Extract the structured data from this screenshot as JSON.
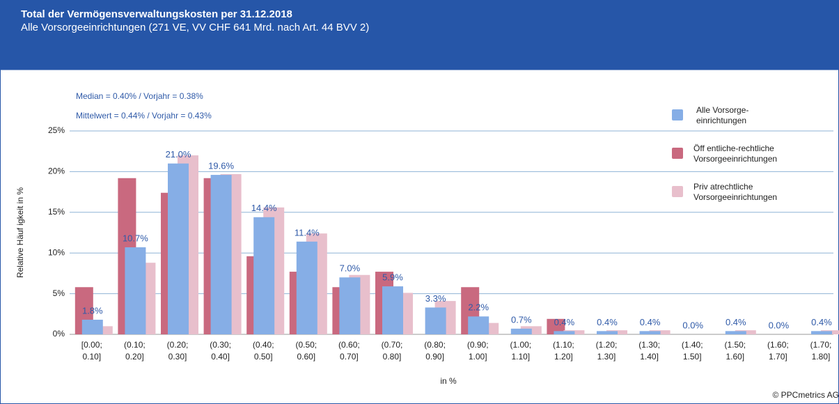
{
  "header": {
    "title": "Total der Vermögensverwaltungskosten  per 31.12.2018",
    "subtitle": "Alle Vorsorgeeinrichtungen (271 VE, VV  CHF 641 Mrd. nach Art. 44 BVV  2)"
  },
  "chart_data": {
    "type": "bar",
    "annotations": [
      "Median  = 0.40% /  Vorjahr = 0.38%",
      "Mittelwert  = 0.44% / Vorjahr = 0.43%"
    ],
    "y_label": "Relative Häuf igkeit in %",
    "x_label": "in %",
    "categories": [
      [
        "[0.00;",
        "0.10]"
      ],
      [
        "(0.10;",
        "0.20]"
      ],
      [
        "(0.20;",
        "0.30]"
      ],
      [
        "(0.30;",
        "0.40]"
      ],
      [
        "(0.40;",
        "0.50]"
      ],
      [
        "(0.50;",
        "0.60]"
      ],
      [
        "(0.60;",
        "0.70]"
      ],
      [
        "(0.70;",
        "0.80]"
      ],
      [
        "(0.80;",
        "0.90]"
      ],
      [
        "(0.90;",
        "1.00]"
      ],
      [
        "(1.00;",
        "1.10]"
      ],
      [
        "(1.10;",
        "1.20]"
      ],
      [
        "(1.20;",
        "1.30]"
      ],
      [
        "(1.30;",
        "1.40]"
      ],
      [
        "(1.40;",
        "1.50]"
      ],
      [
        "(1.50;",
        "1.60]"
      ],
      [
        "(1.60;",
        "1.70]"
      ],
      [
        "(1.70;",
        "1.80]"
      ]
    ],
    "series": [
      {
        "name": [
          "Alle Vorsorge-",
          "einrichtungen"
        ],
        "color": "#86aee6",
        "values": [
          1.8,
          10.7,
          21.0,
          19.6,
          14.4,
          11.4,
          7.0,
          5.9,
          3.3,
          2.2,
          0.7,
          0.4,
          0.4,
          0.4,
          0.0,
          0.4,
          0.0,
          0.4
        ],
        "value_labels": [
          "1.8%",
          "10.7%",
          "21.0%",
          "19.6%",
          "14.4%",
          "11.4%",
          "7.0%",
          "5.9%",
          "3.3%",
          "2.2%",
          "0.7%",
          "0.4%",
          "0.4%",
          "0.4%",
          "0.0%",
          "0.4%",
          "0.0%",
          "0.4%"
        ]
      },
      {
        "name": [
          "Öff entliche-rechtliche",
          "Vorsorgeeinrichtungen"
        ],
        "color": "#c9697f",
        "values": [
          5.8,
          19.2,
          17.4,
          19.2,
          9.6,
          7.7,
          5.8,
          7.7,
          0,
          5.8,
          0,
          1.9,
          0,
          0,
          0,
          0,
          0,
          0
        ]
      },
      {
        "name": [
          "Priv atrechtliche",
          "Vorsorgeeinrichtungen"
        ],
        "color": "#e8bfcc",
        "values": [
          1.0,
          8.8,
          22.0,
          19.7,
          15.6,
          12.4,
          7.3,
          5.1,
          4.1,
          1.4,
          1.0,
          0.5,
          0.5,
          0.5,
          0,
          0.5,
          0,
          0.5
        ]
      }
    ],
    "ylim": [
      0,
      25
    ],
    "yticks": [
      {
        "value": 0,
        "label": "0%"
      },
      {
        "value": 5,
        "label": "5%"
      },
      {
        "value": 10,
        "label": "10%"
      },
      {
        "value": 15,
        "label": "15%"
      },
      {
        "value": 20,
        "label": "20%"
      },
      {
        "value": 25,
        "label": "25%"
      }
    ],
    "grid": true,
    "legend": "right"
  },
  "footer": "© PPCmetrics AG"
}
